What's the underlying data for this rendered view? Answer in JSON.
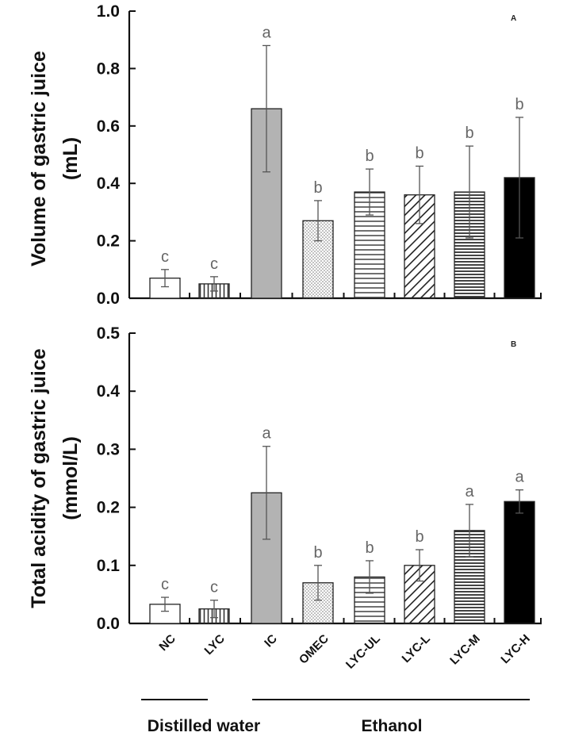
{
  "chart_data": [
    {
      "type": "bar",
      "panel_label": "A",
      "ylabel": [
        "Volume of gastric juice",
        "(mL)"
      ],
      "ylim": [
        0,
        1.0
      ],
      "yticks": [
        "0.0",
        "0.2",
        "0.4",
        "0.6",
        "0.8",
        "1.0"
      ],
      "categories": [
        "NC",
        "LYC",
        "IC",
        "OMEC",
        "LYC-UL",
        "LYC-L",
        "LYC-M",
        "LYC-H"
      ],
      "values": [
        0.07,
        0.05,
        0.66,
        0.27,
        0.37,
        0.36,
        0.37,
        0.42
      ],
      "errors": [
        0.03,
        0.025,
        0.22,
        0.07,
        0.08,
        0.1,
        0.16,
        0.21
      ],
      "significance": [
        "c",
        "c",
        "a",
        "b",
        "b",
        "b",
        "b",
        "b"
      ],
      "fills": [
        "white",
        "vertical-lines",
        "gray",
        "dots",
        "horizontal-lines",
        "diagonal-lines",
        "dense-horizontal-lines",
        "black"
      ]
    },
    {
      "type": "bar",
      "panel_label": "B",
      "ylabel": [
        "Total acidity of gastric juice",
        "(mmol/L)"
      ],
      "ylim": [
        0,
        0.5
      ],
      "yticks": [
        "0.0",
        "0.1",
        "0.2",
        "0.3",
        "0.4",
        "0.5"
      ],
      "categories": [
        "NC",
        "LYC",
        "IC",
        "OMEC",
        "LYC-UL",
        "LYC-L",
        "LYC-M",
        "LYC-H"
      ],
      "values": [
        0.033,
        0.025,
        0.225,
        0.07,
        0.08,
        0.1,
        0.16,
        0.21
      ],
      "errors": [
        0.012,
        0.015,
        0.08,
        0.03,
        0.028,
        0.027,
        0.045,
        0.02
      ],
      "significance": [
        "c",
        "c",
        "a",
        "b",
        "b",
        "b",
        "a",
        "a"
      ],
      "fills": [
        "white",
        "vertical-lines",
        "gray",
        "dots",
        "horizontal-lines",
        "diagonal-lines",
        "dense-horizontal-lines",
        "black"
      ]
    }
  ],
  "groups": [
    {
      "label": "Distilled water",
      "categories": [
        "NC",
        "LYC"
      ]
    },
    {
      "label": "Ethanol",
      "categories": [
        "IC",
        "OMEC",
        "LYC-UL",
        "LYC-L",
        "LYC-M",
        "LYC-H"
      ]
    }
  ]
}
